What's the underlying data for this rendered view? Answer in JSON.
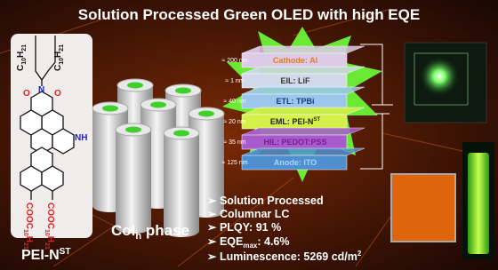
{
  "header": {
    "title": "Solution Processed Green OLED with high EQE"
  },
  "molecule": {
    "alkyl_chains": [
      [
        "C",
        "10",
        "H",
        "21"
      ],
      [
        "C",
        "10",
        "H",
        "21"
      ]
    ],
    "atoms": [
      "O",
      "N",
      "O",
      "NH"
    ],
    "ester_chains": [
      [
        "COOC",
        "10",
        "H",
        "21"
      ],
      [
        "COOC",
        "10",
        "H",
        "21"
      ]
    ],
    "name": {
      "main": "PEI-N",
      "sup": "ST"
    }
  },
  "phase": {
    "main": "Col",
    "sub": "h",
    "rest": " phase"
  },
  "device": {
    "layers": [
      {
        "thickness": "≈ 200 nm",
        "label": "Cathode: Al"
      },
      {
        "thickness": "≈ 1 nm",
        "label": "EIL: LiF"
      },
      {
        "thickness": "≈ 40 nm",
        "label": "ETL: TPBi"
      },
      {
        "thickness": "≈ 20 nm",
        "label": "EML: PEI-N",
        "label_sup": "ST"
      },
      {
        "thickness": "≈ 35 nm",
        "label": "HIL: PEDOT:PSS"
      },
      {
        "thickness": "≈ 125 nm",
        "label": "Anode: ITO"
      }
    ]
  },
  "bullets": [
    {
      "main": "Solution Processed"
    },
    {
      "main": "Columnar LC"
    },
    {
      "main": "PLQY: 91 %"
    },
    {
      "main": "EQE",
      "sub": "max",
      "rest": ": 4.6%"
    },
    {
      "main": "Luminescence: 5269 cd/m",
      "sup": "2"
    }
  ]
}
